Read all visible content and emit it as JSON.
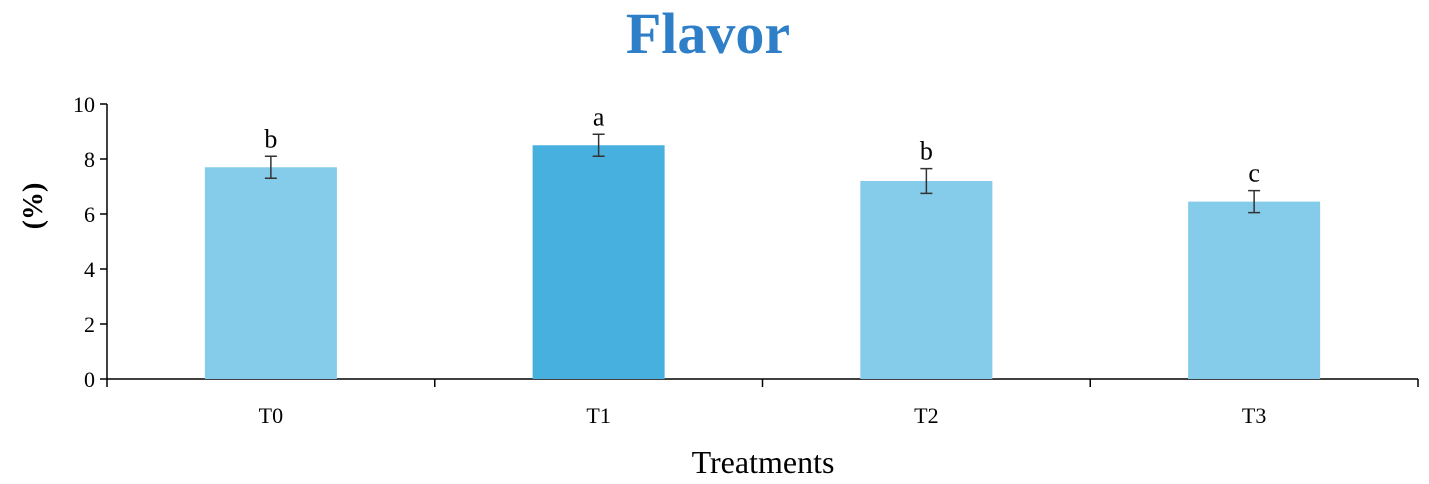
{
  "chart_data": {
    "type": "bar",
    "title": "Flavor",
    "xlabel": "Treatments",
    "ylabel": "(%)",
    "categories": [
      "T0",
      "T1",
      "T2",
      "T3"
    ],
    "values": [
      7.7,
      8.5,
      7.2,
      6.45
    ],
    "errors": [
      0.4,
      0.4,
      0.45,
      0.4
    ],
    "significance": [
      "b",
      "a",
      "b",
      "c"
    ],
    "ylim": [
      0,
      10
    ],
    "yticks": [
      "0",
      "2",
      "4",
      "6",
      "8",
      "10"
    ],
    "grid": false,
    "legend": "none",
    "colors": {
      "bar": "#85cbea",
      "highlight_bar": "#47b0df",
      "title": "#2e7fc7"
    },
    "highlight_index": 1
  }
}
